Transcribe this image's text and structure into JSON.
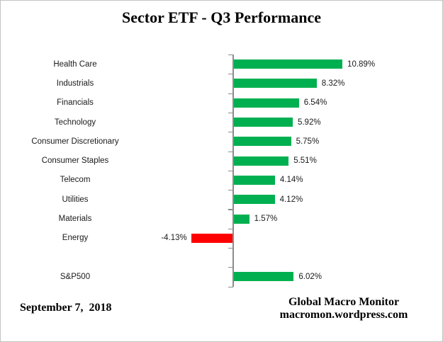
{
  "chart_data": {
    "type": "bar",
    "orientation": "horizontal",
    "title": "Sector ETF - Q3 Performance",
    "categories": [
      "Health Care",
      "Industrials",
      "Financials",
      "Technology",
      "Consumer Discretionary",
      "Consumer Staples",
      "Telecom",
      "Utilities",
      "Materials",
      "Energy",
      "",
      "S&P500"
    ],
    "values": [
      10.89,
      8.32,
      6.54,
      5.92,
      5.75,
      5.51,
      4.14,
      4.12,
      1.57,
      -4.13,
      null,
      6.02
    ],
    "value_labels": [
      "10.89%",
      "8.32%",
      "6.54%",
      "5.92%",
      "5.75%",
      "5.51%",
      "4.14%",
      "4.12%",
      "1.57%",
      "-4.13%",
      "",
      "6.02%"
    ],
    "colors": {
      "positive": "#00B050",
      "negative": "#FF0000",
      "axis": "#8C8C8C",
      "text": "#1a1a1a"
    },
    "xlabel": "",
    "ylabel": "",
    "grid": "off",
    "legend": "none",
    "value_axis_labels_visible": false,
    "baseline": 0
  },
  "footer": {
    "date": "September 7,  2018",
    "source_name": "Global Macro Monitor",
    "source_url": "macromon.wordpress.com"
  }
}
